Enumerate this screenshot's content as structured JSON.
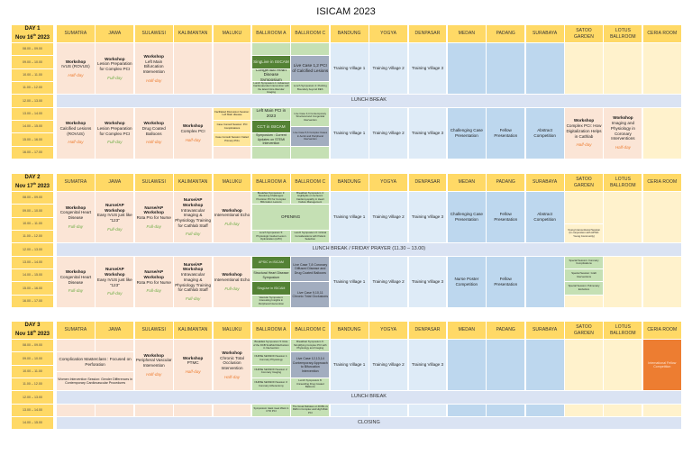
{
  "title": "ISICAM 2023",
  "venues": [
    "SUMATRA",
    "JAWA",
    "SULAWESI",
    "KALIMANTAN",
    "MALUKU",
    "BALLROOM A",
    "BALLROOM C",
    "BANDUNG",
    "YOGYA",
    "DENPASAR",
    "MEDAN",
    "PADANG",
    "SURABAYA",
    "SATOO GARDEN",
    "LOTUS BALLROOM",
    "CERIA ROOM"
  ],
  "colors": {
    "header": "#ffd966",
    "workshop": "#fbe5d6",
    "symposium": "#c5e0b4",
    "highlight": "#548235",
    "live_case": "#a2adbf",
    "training": "#deebf7",
    "competition": "#bdd7ee",
    "break": "#dae3f3",
    "fellow": "#ed7d31"
  },
  "days": [
    {
      "label": "DAY 1",
      "date": "Nov 16",
      "sup": "th",
      "year": " 2023",
      "times": [
        "08.00 – 09.00",
        "09.00 – 10.00",
        "10.00 – 11.00",
        "11.00 – 12.00",
        "12.00 – 13.00",
        "13.00 – 14.00",
        "14.00 – 15.00",
        "15.00 – 16.00",
        "16.00 – 17.00"
      ],
      "s": {
        "sum_am": {
          "t": "Workshop",
          "d": "IVUS (ROVUS)",
          "u": "Half-day",
          "k": "half"
        },
        "jaw_am": {
          "t": "Workshop",
          "d": "Lesion Preparation for Complex PCI",
          "u": "Full-day",
          "k": "full"
        },
        "sul_am": {
          "t": "Workshop",
          "d": "Left Main Bifurcation Intervention",
          "u": "Half-day",
          "k": "half"
        },
        "ba1": {
          "d": "SingLive in ISICAM"
        },
        "ba2": {
          "d": "Congenital Heart Disease Symposium"
        },
        "ba3": {
          "d": "Lunch Symposium 1: Advanced Cardiovascular Intervention with the latest Intra-Vascular Imaging"
        },
        "bc1": {
          "d": "Live Case 1,2 PCI of Calcified Lesions"
        },
        "bc2": {
          "d": "Lunch Symposium 2: Pushing Boundary beyond DES"
        },
        "tv1": {
          "d": "Training Village 1"
        },
        "tv2": {
          "d": "Training Village 2"
        },
        "tv3": {
          "d": "Training Village 3"
        },
        "lunch": {
          "d": "LUNCH BREAK"
        },
        "sum_pm": {
          "t": "Workshop",
          "d": "Calcified Lesions (ROVUS)",
          "u": "Half-day",
          "k": "half"
        },
        "jaw_pm": {
          "t": "Workshop",
          "d": "Lesion Preparation for Complex PCI",
          "u": "Full-day",
          "k": "full"
        },
        "sul_pm": {
          "t": "Workshop",
          "d": "Drug Coated Balloons",
          "u": "Half-day",
          "k": "half"
        },
        "kal_pm": {
          "t": "Workshop",
          "d": "Complex PCI",
          "u": "Half-day",
          "k": "half"
        },
        "mal1": {
          "d": "Facilitated Discussion Session: Left Main disease"
        },
        "mal2": {
          "d": "Case Consult Session: PCI Complications"
        },
        "mal3": {
          "d": "Case Consult Session: Failed Primary PCIs"
        },
        "ba4": {
          "d": "Left Main PCI in 2023"
        },
        "ba5": {
          "d": "CCT in ISICAM"
        },
        "ba6": {
          "d": "Symposium : Current Updates on STEMI Intervention"
        },
        "bc3": {
          "d": "Live Case 3,4 Contemporary Structural and Congenital Intervention"
        },
        "bc4": {
          "d": "Live Case 5,6 Complex Cases in Aortic and Peripheral Intervention"
        },
        "med_pm": {
          "d": "Challenging Case Presentation"
        },
        "pad_pm": {
          "d": "Fellow Presentation"
        },
        "sur_pm": {
          "d": "Abstract Competition"
        },
        "sat_pm": {
          "t": "Workshop",
          "d": "Complex PCI: How Digitalization Helps in Cathlab",
          "u": "Half-day",
          "k": "half"
        },
        "lot_pm": {
          "t": "Workshop",
          "d": "Imaging and Physiology in Coronary Interventions",
          "u": "Half-day",
          "k": "half"
        }
      }
    },
    {
      "label": "DAY 2",
      "date": "Nov 17",
      "sup": "th",
      "year": " 2023",
      "times": [
        "08.00 – 09.00",
        "09.00 – 10.00",
        "10.00 – 11.00",
        "11.00 – 12.00",
        "12.00 – 13.00",
        "13.00 – 14.00",
        "14.00 – 15.00",
        "15.00 – 16.00",
        "16.00 – 17.00"
      ],
      "s": {
        "sum": {
          "t": "Workshop",
          "d": "Congenital Heart Disease",
          "u": "Full-day",
          "k": "full"
        },
        "jaw": {
          "t": "Nurse/AP Workshop",
          "d": "Easy IVUS just like \"123\"",
          "u": "Full-day",
          "k": "full"
        },
        "sul": {
          "t": "Nurse/AP Workshop",
          "d": "Rota Pro for Nurse",
          "u": "Full-day",
          "k": "full"
        },
        "kal": {
          "t": "Nurse/AP Workshop",
          "d": "Intravascular Imaging & Physiology Training for Cathlab Staff",
          "u": "Full-day",
          "k": "full"
        },
        "mal": {
          "t": "Workshop",
          "d": "Interventional Echo",
          "u": "Full-day",
          "k": "full"
        },
        "ba1": {
          "d": "Breakfast Symposium 3: Resolving Challenges: Precision PCI for Complex Bifurcation Lesions"
        },
        "bc1": {
          "d": "Breakfast Symposium 4: Highlights on Ischemic Cardiomyopathy in Heart Failure Management"
        },
        "open": {
          "d": "OPENING"
        },
        "ba2": {
          "d": "Lunch Symposium 5: Physiologic Guided Lesion Optimization (LPO)"
        },
        "bc2": {
          "d": "Lunch Symposium 6: Critical Considerations with Patient Selection"
        },
        "tv1": {
          "d": "Training Village 1"
        },
        "tv2": {
          "d": "Training Village 2"
        },
        "tv3": {
          "d": "Training Village 3"
        },
        "med_am": {
          "d": "Challenging Case Presentation"
        },
        "pad_am": {
          "d": "Fellow Presentation"
        },
        "sur_am": {
          "d": "Abstract Competition"
        },
        "sat1": {
          "d": "Young Interventional Session (In conjunction with APSIC Young Community)"
        },
        "lunch": {
          "d": "LUNCH BREAK / FRIDAY PRAYER (11.30 – 13.00)"
        },
        "ba3": {
          "d": "APSIC in ISICAM"
        },
        "ba4": {
          "d": "Structural Heart Disease Symposium"
        },
        "ba5": {
          "d": "SingLive in ISICAM"
        },
        "ba6": {
          "d": "Vascular Symposium: Interesting Insights in Peripheral Intervention"
        },
        "bc3": {
          "d": "Live Case 7,8 Coronary Diffused Disease and Drug Coated Balloons"
        },
        "bc4": {
          "d": "Live Case 9,10,11 Chronic Total Occlusions"
        },
        "med_pm": {
          "d": "Nurse Poster Competition"
        },
        "pad_pm": {
          "d": "Fellow Presentation"
        },
        "sat2": {
          "d": "Special Session: Coronary Complications"
        },
        "sat3": {
          "d": "Special Session: Graft Interventions"
        },
        "sat4": {
          "d": "Special Session: Pulmonary Embolism"
        }
      }
    },
    {
      "label": "DAY 3",
      "date": "Nov 18",
      "sup": "th",
      "year": " 2023",
      "times": [
        "08.00 – 09.00",
        "09.00 – 10.00",
        "10.00 – 11.00",
        "11.00 – 12.00",
        "12.00 – 13.00",
        "13.00 – 14.00",
        "14.00 – 15.00"
      ],
      "s": {
        "cm": {
          "d": "Complication Masterclass : Focused on Perforation"
        },
        "wi": {
          "d": "Women Intervention Session: Gender Differences in Contemporary Cardiovascular Procedures"
        },
        "sul": {
          "t": "Workshop",
          "d": "Peripheral Vascular Intervention",
          "u": "Half-day",
          "k": "half"
        },
        "kal": {
          "t": "Workshop",
          "d": "PTMC",
          "u": "Half-day",
          "k": "half"
        },
        "mal": {
          "t": "Workshop",
          "d": "Chronic Total Occlusion Intervention",
          "u": "Half-day",
          "k": "half"
        },
        "ba1": {
          "d": "Breakfast Symposium 5: Role of the DCB Scaffold Mechanism in Intervention"
        },
        "ba2": {
          "d": "NURSE SESSION Session 1: Coronary Physiology"
        },
        "ba3": {
          "d": "NURSE SESSION Session 2: Coronary Imaging"
        },
        "ba4": {
          "d": "NURSE SESSION Session 3: Coronary Atherectomy"
        },
        "bc1": {
          "d": "Breakfast Symposium 6: Simplifying Complex PCI with Physiology and Imaging"
        },
        "bc2": {
          "d": "Live Case 12,13,14 Contemporary Approach to Bifurcation Intervention"
        },
        "bc3": {
          "d": "Lunch Symposium 8: Unravelling Drug Coated Balloons"
        },
        "tv1": {
          "d": "Training Village 1"
        },
        "tv2": {
          "d": "Training Village 2"
        },
        "tv3": {
          "d": "Training Village 3"
        },
        "cer": {
          "d": "International Fellow Competition"
        },
        "lunch": {
          "d": "LUNCH BREAK"
        },
        "ba5": {
          "d": "Symposium: East meet West in CTO PCI"
        },
        "bc4": {
          "d": "The Great Debates on DCBs vs DES in Complex and High Risk PCI"
        },
        "closing": {
          "d": "CLOSING"
        }
      }
    }
  ]
}
